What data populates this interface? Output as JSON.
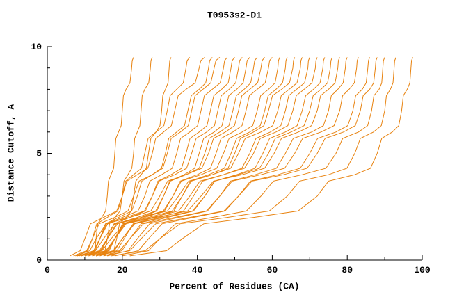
{
  "page": {
    "background": "#ffffff"
  },
  "chart_data": {
    "type": "line",
    "title": "T0953s2-D1",
    "xlabel": "Percent of Residues (CA)",
    "ylabel": "Distance Cutoff, A",
    "xlim": [
      0,
      100
    ],
    "ylim": [
      0,
      10
    ],
    "x_ticks": [
      0,
      20,
      40,
      60,
      80,
      100
    ],
    "x_minor_ticks": [
      10,
      30,
      50,
      70,
      90
    ],
    "y_ticks": [
      0,
      5,
      10
    ],
    "y_minor_ticks": [
      1,
      2,
      3,
      4,
      6,
      7,
      8,
      9
    ],
    "grid": false,
    "legend_position": "none",
    "series_color": "#e8820e",
    "axis_color": "#000000",
    "y_levels": [
      0.2,
      1,
      2,
      3,
      4,
      5,
      6,
      7,
      8,
      9,
      9.5
    ],
    "series": [
      [
        12,
        13,
        14.5,
        16,
        17,
        18,
        19,
        20,
        21,
        22.5,
        23
      ],
      [
        14,
        16,
        18,
        20,
        21.5,
        23,
        24,
        25,
        26,
        27.5,
        28
      ],
      [
        16,
        18.5,
        21,
        23,
        25,
        27,
        29,
        30.5,
        31.5,
        32.5,
        33
      ],
      [
        8,
        12,
        16,
        20,
        23,
        26,
        29,
        32,
        34.5,
        37,
        38
      ],
      [
        6,
        10,
        15,
        20,
        24,
        28,
        31,
        34,
        37,
        40.5,
        42
      ],
      [
        10,
        14,
        19,
        24,
        28,
        31.5,
        34.5,
        37.5,
        40.5,
        43,
        44
      ],
      [
        7,
        12,
        18,
        23,
        28,
        32,
        35.5,
        38.5,
        41.5,
        44.5,
        46
      ],
      [
        9,
        14,
        20,
        26,
        30.5,
        34.5,
        38,
        41,
        44,
        47,
        48
      ],
      [
        11,
        16,
        22,
        28,
        33,
        37,
        40.5,
        43.5,
        46.5,
        49,
        50
      ],
      [
        8.5,
        14,
        21,
        28,
        34,
        38.5,
        42.5,
        45.5,
        48.5,
        51,
        52
      ],
      [
        13,
        18,
        25,
        31,
        36.5,
        40.5,
        44.5,
        47.5,
        50.5,
        53,
        54
      ],
      [
        10,
        16,
        24,
        31,
        37,
        42,
        46,
        49.5,
        52.5,
        55,
        56
      ],
      [
        7.5,
        13,
        22,
        30,
        37,
        43,
        47.5,
        51,
        54,
        57,
        58
      ],
      [
        12,
        18,
        26,
        33.5,
        40,
        45,
        49.5,
        53,
        56,
        59,
        60
      ],
      [
        9,
        16,
        25,
        33.5,
        41,
        47,
        52,
        56,
        59,
        61.5,
        62
      ],
      [
        14,
        20.5,
        28.5,
        36,
        43,
        49,
        54,
        58,
        61,
        63.5,
        64
      ],
      [
        11,
        18,
        27,
        36,
        44,
        50,
        55,
        59,
        62.5,
        65.5,
        66
      ],
      [
        8,
        15,
        25,
        35,
        44,
        51,
        57,
        61.5,
        64.5,
        67.5,
        68
      ],
      [
        13,
        20,
        30,
        39,
        47,
        54,
        59.5,
        63.5,
        66.5,
        69.5,
        70
      ],
      [
        10,
        18,
        28,
        38,
        47,
        55,
        61,
        65.5,
        68.5,
        71.5,
        72
      ],
      [
        15,
        22,
        32,
        42,
        50.5,
        57.5,
        63.5,
        68,
        71,
        73.5,
        74
      ],
      [
        12,
        20,
        31,
        42,
        51,
        59,
        65,
        70,
        73,
        75.5,
        76
      ],
      [
        9,
        17,
        29,
        41,
        52,
        60.5,
        67,
        72,
        75,
        77.5,
        78
      ],
      [
        16,
        24,
        35,
        46,
        55.5,
        63.5,
        70.5,
        75,
        77.5,
        79.5,
        80
      ],
      [
        13,
        22,
        34,
        46,
        57,
        66,
        73,
        78,
        80.5,
        82.5,
        83
      ],
      [
        18,
        27,
        39,
        51,
        61.5,
        70,
        77,
        81.5,
        84,
        85.5,
        86
      ],
      [
        15,
        25,
        38,
        51,
        63,
        72,
        79,
        83.5,
        86,
        87.5,
        88
      ],
      [
        20,
        30,
        44,
        57,
        68,
        77,
        83,
        86.5,
        88.5,
        89.5,
        90
      ],
      [
        17,
        30,
        48,
        64,
        75,
        82,
        87,
        90,
        91.5,
        92.5,
        93
      ],
      [
        22,
        36,
        55,
        72,
        82,
        88,
        92,
        94.5,
        96,
        97,
        97.5
      ]
    ]
  }
}
